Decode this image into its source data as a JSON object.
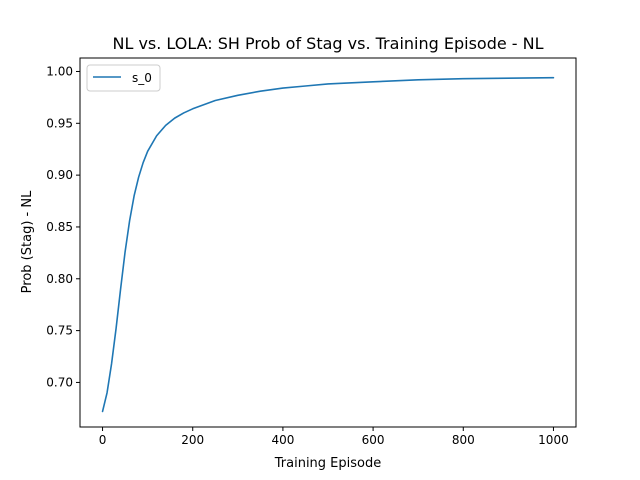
{
  "chart_data": {
    "type": "line",
    "title": "NL vs. LOLA: SH Prob of Stag vs. Training Episode - NL",
    "xlabel": "Training Episode",
    "ylabel": "Prob (Stag) - NL",
    "xlim": [
      -50,
      1050
    ],
    "ylim": [
      0.657,
      1.013
    ],
    "xticks": [
      0,
      200,
      400,
      600,
      800,
      1000
    ],
    "xtick_labels": [
      "0",
      "200",
      "400",
      "600",
      "800",
      "1000"
    ],
    "yticks": [
      0.7,
      0.75,
      0.8,
      0.85,
      0.9,
      0.95,
      1.0
    ],
    "ytick_labels": [
      "0.70",
      "0.75",
      "0.80",
      "0.85",
      "0.90",
      "0.95",
      "1.00"
    ],
    "grid": false,
    "legend": {
      "position": "top-left",
      "entries": [
        "s_0"
      ]
    },
    "series": [
      {
        "name": "s_0",
        "color": "#1f77b4",
        "x": [
          0,
          10,
          20,
          30,
          40,
          50,
          60,
          70,
          80,
          90,
          100,
          120,
          140,
          160,
          180,
          200,
          250,
          300,
          350,
          400,
          450,
          500,
          600,
          700,
          800,
          900,
          1000
        ],
        "y": [
          0.672,
          0.69,
          0.718,
          0.752,
          0.79,
          0.826,
          0.856,
          0.88,
          0.898,
          0.912,
          0.923,
          0.938,
          0.948,
          0.955,
          0.96,
          0.964,
          0.972,
          0.977,
          0.981,
          0.984,
          0.986,
          0.988,
          0.99,
          0.992,
          0.993,
          0.9935,
          0.994
        ]
      }
    ]
  }
}
